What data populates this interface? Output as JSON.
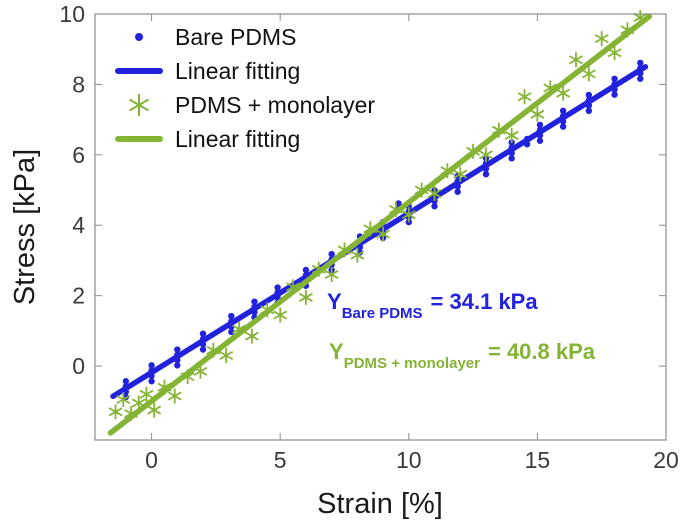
{
  "colors": {
    "bare_pdms_blue": "#2222dd",
    "monolayer_green": "#85b435",
    "axis_frame": "#8c8c8c",
    "tick_label": "#3a3a3a",
    "background": "#ffffff"
  },
  "chart_data": {
    "type": "scatter",
    "title": "",
    "xlabel": "Strain [%]",
    "ylabel": "Stress [kPa]",
    "xlim": [
      -2.2,
      20
    ],
    "ylim": [
      -2.1,
      10
    ],
    "xticks": [
      0,
      5,
      10,
      15,
      20
    ],
    "yticks": [
      0,
      2,
      4,
      6,
      8,
      10
    ],
    "grid": false,
    "legend_position": "top-left-inside",
    "series": [
      {
        "name": "Bare PDMS",
        "kind": "scatter",
        "marker": "dot",
        "color": "#2222dd",
        "clusters": [
          {
            "x": -1,
            "ys": [
              -0.88,
              -0.73,
              -0.58,
              -0.43
            ]
          },
          {
            "x": 0,
            "ys": [
              -0.43,
              -0.28,
              -0.13,
              0.02
            ]
          },
          {
            "x": 1,
            "ys": [
              0.02,
              0.17,
              0.32,
              0.47
            ]
          },
          {
            "x": 2,
            "ys": [
              0.47,
              0.62,
              0.77,
              0.92
            ]
          },
          {
            "x": 3.1,
            "ys": [
              0.97,
              1.12,
              1.27,
              1.42
            ]
          },
          {
            "x": 4,
            "ys": [
              1.38,
              1.53,
              1.68,
              1.83
            ]
          },
          {
            "x": 4.9,
            "ys": [
              1.79,
              1.94,
              2.09,
              2.23
            ]
          },
          {
            "x": 6,
            "ys": [
              2.28,
              2.43,
              2.58,
              2.73
            ]
          },
          {
            "x": 7,
            "ys": [
              2.73,
              2.88,
              3.03,
              3.18
            ]
          },
          {
            "x": 8.1,
            "ys": [
              3.23,
              3.38,
              3.53,
              3.68
            ]
          },
          {
            "x": 9,
            "ys": [
              3.64,
              3.79,
              3.94,
              4.09
            ]
          },
          {
            "x": 9.6,
            "ys": [
              4.45,
              4.62
            ]
          },
          {
            "x": 10,
            "ys": [
              4.09,
              4.24,
              4.39,
              4.54
            ]
          },
          {
            "x": 11,
            "ys": [
              4.54,
              4.69,
              4.84,
              4.99
            ]
          },
          {
            "x": 11.9,
            "ys": [
              4.95,
              5.1,
              5.25,
              5.4
            ]
          },
          {
            "x": 13,
            "ys": [
              5.45,
              5.6,
              5.75,
              5.9
            ]
          },
          {
            "x": 14,
            "ys": [
              5.9,
              6.05,
              6.2,
              6.35
            ]
          },
          {
            "x": 14.6,
            "ys": [
              6.3,
              6.45
            ]
          },
          {
            "x": 15.1,
            "ys": [
              6.4,
              6.55,
              6.7,
              6.85
            ]
          },
          {
            "x": 16,
            "ys": [
              6.8,
              6.95,
              7.1,
              7.25
            ]
          },
          {
            "x": 17,
            "ys": [
              7.25,
              7.4,
              7.55,
              7.7
            ]
          },
          {
            "x": 18,
            "ys": [
              7.71,
              7.86,
              8.01,
              8.16
            ]
          },
          {
            "x": 19,
            "ys": [
              8.16,
              8.31,
              8.46,
              8.61
            ]
          }
        ]
      },
      {
        "name": "Linear fitting",
        "kind": "line",
        "color": "#2222dd",
        "endpoints": [
          [
            -1.5,
            -0.86
          ],
          [
            19.2,
            8.5
          ]
        ]
      },
      {
        "name": "PDMS + monolayer",
        "kind": "scatter",
        "marker": "asterisk",
        "color": "#85b435",
        "points": [
          [
            -1.4,
            -1.3
          ],
          [
            -1.1,
            -0.95
          ],
          [
            -0.8,
            -1.35
          ],
          [
            -0.5,
            -1.05
          ],
          [
            -0.2,
            -0.8
          ],
          [
            0.1,
            -1.25
          ],
          [
            0.5,
            -0.6
          ],
          [
            0.9,
            -0.85
          ],
          [
            1.4,
            -0.3
          ],
          [
            1.9,
            -0.15
          ],
          [
            2.4,
            0.45
          ],
          [
            2.9,
            0.3
          ],
          [
            3.4,
            1.05
          ],
          [
            3.9,
            0.85
          ],
          [
            4.5,
            1.6
          ],
          [
            5.0,
            1.45
          ],
          [
            5.5,
            2.25
          ],
          [
            6.0,
            1.95
          ],
          [
            6.5,
            2.75
          ],
          [
            7.0,
            2.6
          ],
          [
            7.5,
            3.3
          ],
          [
            8.0,
            3.15
          ],
          [
            8.5,
            3.9
          ],
          [
            9.0,
            3.75
          ],
          [
            9.5,
            4.45
          ],
          [
            10.0,
            4.3
          ],
          [
            10.5,
            5.0
          ],
          [
            11.0,
            4.9
          ],
          [
            11.5,
            5.55
          ],
          [
            12.0,
            5.45
          ],
          [
            12.5,
            6.1
          ],
          [
            13.0,
            6.0
          ],
          [
            13.5,
            6.7
          ],
          [
            14.0,
            6.55
          ],
          [
            14.5,
            7.65
          ],
          [
            15.0,
            7.15
          ],
          [
            15.5,
            7.9
          ],
          [
            16.0,
            7.75
          ],
          [
            16.5,
            8.7
          ],
          [
            17.0,
            8.3
          ],
          [
            17.5,
            9.3
          ],
          [
            18.0,
            8.9
          ],
          [
            18.5,
            9.55
          ],
          [
            19.0,
            9.9
          ]
        ]
      },
      {
        "name": "Linear fitting",
        "kind": "line",
        "color": "#85b435",
        "endpoints": [
          [
            -1.6,
            -1.9
          ],
          [
            19.35,
            9.93
          ]
        ]
      }
    ],
    "annotations": [
      {
        "prefix": "Y",
        "subscript": "Bare PDMS",
        "value": "= 34.1 kPa",
        "color": "#2222dd"
      },
      {
        "prefix": "Y",
        "subscript": "PDMS + monolayer",
        "value": "= 40.8 kPa",
        "color": "#85b435"
      }
    ]
  }
}
